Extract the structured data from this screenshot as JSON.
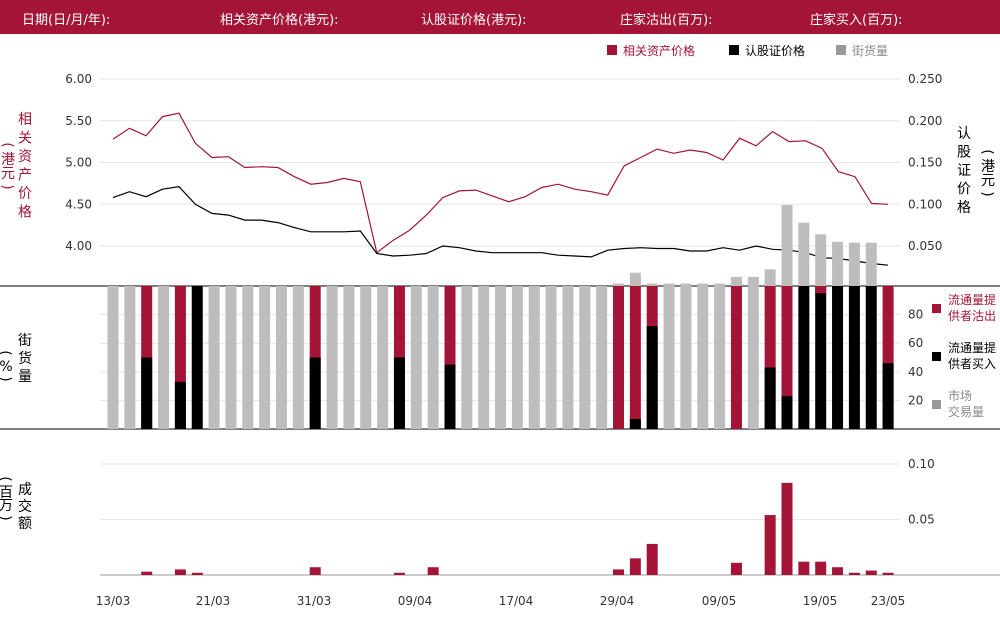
{
  "header": {
    "date_label": "日期(日/月/年):",
    "underlying_label": "相关资产价格(港元):",
    "warrant_label": "认股证价格(港元):",
    "sell_label": "庄家沽出(百万):",
    "buy_label": "庄家买入(百万):"
  },
  "colors": {
    "red": "#a31436",
    "black": "#000000",
    "gray": "#bdbdbd",
    "header_bg": "#a31436"
  },
  "chart_data": [
    {
      "type": "line",
      "legend": [
        "相关资产价格",
        "认股证价格",
        "街货量"
      ],
      "left_axis": {
        "label": "相关资产价格（港元）",
        "ticks": [
          "6.00",
          "5.50",
          "5.00",
          "4.50",
          "4.00"
        ],
        "ylim": [
          3.85,
          6.0
        ]
      },
      "right_axis": {
        "label": "认股证价格（港元）",
        "ticks": [
          "0.250",
          "0.200",
          "0.150",
          "0.100",
          "0.050"
        ],
        "ylim": [
          0.0,
          0.25
        ]
      },
      "series": [
        {
          "name": "相关资产价格",
          "color": "#a31436",
          "values": [
            5.28,
            5.41,
            5.32,
            5.55,
            5.59,
            5.23,
            5.06,
            5.07,
            4.94,
            4.95,
            4.94,
            4.83,
            4.74,
            4.76,
            4.81,
            4.77,
            3.92,
            4.07,
            4.19,
            4.37,
            4.58,
            4.66,
            4.67,
            4.6,
            4.53,
            4.59,
            4.7,
            4.74,
            4.68,
            4.65,
            4.61,
            4.96,
            5.06,
            5.16,
            5.11,
            5.15,
            5.12,
            5.03,
            5.29,
            5.2,
            5.37,
            5.25,
            5.26,
            5.17,
            4.89,
            4.83,
            4.51,
            4.5
          ]
        },
        {
          "name": "认股证价格",
          "color": "#000000",
          "values": [
            0.108,
            0.115,
            0.109,
            0.118,
            0.121,
            0.1,
            0.089,
            0.087,
            0.081,
            0.081,
            0.078,
            0.072,
            0.067,
            0.067,
            0.067,
            0.068,
            0.041,
            0.038,
            0.039,
            0.041,
            0.05,
            0.048,
            0.044,
            0.042,
            0.042,
            0.042,
            0.042,
            0.039,
            0.038,
            0.037,
            0.045,
            0.047,
            0.048,
            0.047,
            0.047,
            0.044,
            0.044,
            0.048,
            0.045,
            0.05,
            0.046,
            0.045,
            0.042,
            0.036,
            0.035,
            0.032,
            0.029,
            0.027
          ]
        }
      ]
    },
    {
      "type": "bar",
      "left_axis_label": "街货量（%）",
      "right_axis": {
        "ticks": [
          "80",
          "60",
          "40",
          "20"
        ],
        "ylim": [
          0,
          100
        ]
      },
      "legend": [
        "流通量提供者沽出",
        "流通量提供者买入",
        "市场交易量"
      ],
      "dealer_activity": [
        "g",
        "g",
        "s",
        "g",
        "s",
        "b",
        "g",
        "g",
        "g",
        "g",
        "g",
        "g",
        "s",
        "g",
        "g",
        "g",
        "g",
        "s",
        "g",
        "g",
        "s",
        "g",
        "g",
        "g",
        "g",
        "g",
        "g",
        "g",
        "g",
        "g",
        "s",
        "s",
        "s",
        "g",
        "g",
        "g",
        "g",
        "s",
        "g",
        "s",
        "s",
        "b",
        "b",
        "b",
        "b",
        "b",
        "s"
      ],
      "black_percent": [
        0,
        0,
        50,
        0,
        33,
        100,
        0,
        0,
        0,
        0,
        0,
        0,
        50,
        0,
        0,
        0,
        0,
        50,
        0,
        0,
        45,
        0,
        0,
        0,
        0,
        0,
        0,
        0,
        0,
        0,
        0,
        7,
        72,
        0,
        0,
        0,
        0,
        0,
        0,
        43,
        23,
        100,
        95,
        100,
        100,
        100,
        46
      ]
    },
    {
      "type": "bar",
      "left_axis_label": "成交额（百万）",
      "right_axis": {
        "ticks": [
          "0.10",
          "0.05"
        ],
        "ylim": [
          0,
          0.1
        ]
      },
      "values": [
        0,
        0,
        0.003,
        0,
        0.005,
        0.002,
        0,
        0,
        0,
        0,
        0,
        0,
        0.007,
        0,
        0,
        0,
        0,
        0.002,
        0,
        0.007,
        0,
        0,
        0,
        0,
        0,
        0,
        0,
        0,
        0,
        0,
        0.005,
        0.015,
        0.028,
        0,
        0,
        0,
        0,
        0.011,
        0,
        0.054,
        0.083,
        0.012,
        0.012,
        0.007,
        0.002,
        0.004,
        0.002
      ]
    }
  ],
  "street_stock_gray": [
    0,
    0,
    0,
    0,
    0,
    0,
    0,
    0,
    0,
    0,
    0,
    0,
    0,
    0,
    0,
    0,
    0,
    0,
    0,
    0,
    0,
    0,
    0,
    0,
    0,
    0,
    0,
    0,
    0,
    0,
    0.005,
    0.018,
    0.005,
    0.005,
    0.005,
    0.005,
    0.005,
    0.013,
    0.013,
    0.022,
    0.099,
    0.078,
    0.064,
    0.055,
    0.054,
    0.054
  ],
  "x_ticks": [
    "13/03",
    "21/03",
    "31/03",
    "09/04",
    "17/04",
    "29/04",
    "09/05",
    "19/05",
    "23/05"
  ]
}
